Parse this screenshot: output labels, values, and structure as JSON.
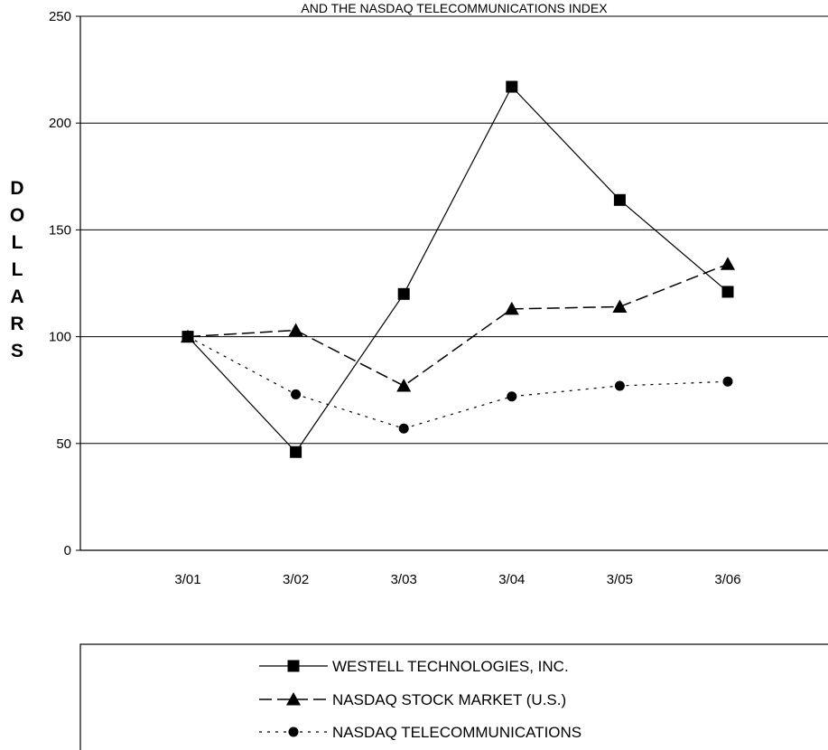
{
  "chart_data": {
    "type": "line",
    "title": "AND THE NASDAQ TELECOMMUNICATIONS INDEX",
    "xlabel": "",
    "ylabel": "DOLLARS",
    "categories": [
      "3/01",
      "3/02",
      "3/03",
      "3/04",
      "3/05",
      "3/06"
    ],
    "ylim": [
      0,
      250
    ],
    "yticks": [
      0,
      50,
      100,
      150,
      200,
      250
    ],
    "grid": "horizontal",
    "legend_position": "bottom",
    "series": [
      {
        "name": "WESTELL TECHNOLOGIES, INC.",
        "values": [
          100,
          46,
          120,
          217,
          164,
          121
        ],
        "marker": "square",
        "line_style": "solid",
        "color": "#000000"
      },
      {
        "name": "NASDAQ STOCK MARKET (U.S.)",
        "values": [
          100,
          103,
          77,
          113,
          114,
          134
        ],
        "marker": "triangle",
        "line_style": "dashed",
        "color": "#000000"
      },
      {
        "name": "NASDAQ TELECOMMUNICATIONS",
        "values": [
          100,
          73,
          57,
          72,
          77,
          79
        ],
        "marker": "circle",
        "line_style": "dotted",
        "color": "#000000"
      }
    ]
  }
}
